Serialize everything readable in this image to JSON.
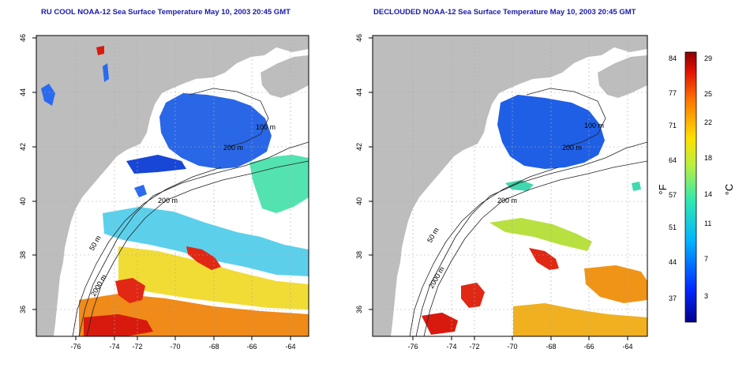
{
  "maps": [
    {
      "title": "RU COOL NOAA-12 Sea Surface Temperature May 10, 2003 20:45 GMT",
      "xticks": [
        "-76",
        "-74",
        "-72",
        "-70",
        "-68",
        "-66",
        "-64"
      ],
      "yticks": [
        "36",
        "38",
        "40",
        "42",
        "44",
        "46"
      ],
      "contour_labels": [
        "100 m",
        "200 m",
        "200 m",
        "50 m",
        "2000 m"
      ]
    },
    {
      "title": "DECLOUDED NOAA-12 Sea Surface Temperature May 10, 2003 20:45 GMT",
      "xticks": [
        "-76",
        "-74",
        "-72",
        "-70",
        "-68",
        "-66",
        "-64"
      ],
      "yticks": [
        "36",
        "38",
        "40",
        "42",
        "44",
        "46"
      ],
      "contour_labels": [
        "100 m",
        "200 m",
        "200 m",
        "50 m",
        "2000 m"
      ]
    }
  ],
  "colorbar": {
    "f_label": "°F",
    "c_label": "°C",
    "f_ticks": [
      "84",
      "77",
      "71",
      "64",
      "57",
      "51",
      "44",
      "37"
    ],
    "c_ticks": [
      "29",
      "25",
      "22",
      "18",
      "14",
      "11",
      "7",
      "3"
    ]
  },
  "colors": {
    "land": "#bdbdbd",
    "title": "#1a1aa8",
    "cold": "#1e5de0",
    "warm": "#e02010"
  }
}
